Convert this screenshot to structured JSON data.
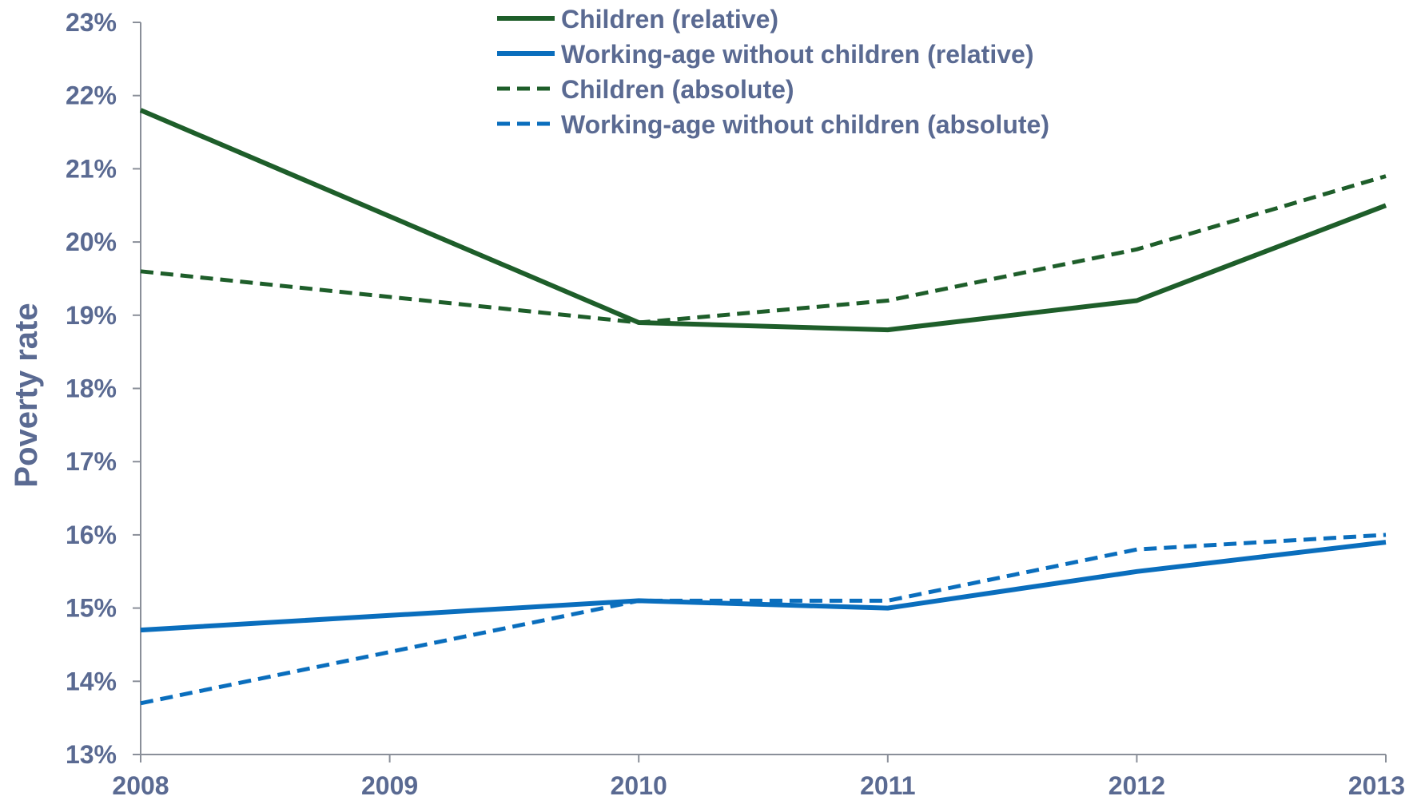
{
  "chart_data": {
    "type": "line",
    "title": "",
    "xlabel": "",
    "ylabel": "Poverty rate",
    "x": [
      "2008",
      "2009",
      "2010",
      "2011",
      "2012",
      "2013"
    ],
    "ylim": [
      0.13,
      0.23
    ],
    "yticks": [
      "13%",
      "14%",
      "15%",
      "16%",
      "17%",
      "18%",
      "19%",
      "20%",
      "21%",
      "22%",
      "23%"
    ],
    "grid": false,
    "legend_position": "top-center",
    "series": [
      {
        "name": "Children (relative)",
        "color": "#1e5e2a",
        "dashed": false,
        "values": [
          0.218,
          0.2035,
          0.189,
          0.188,
          0.192,
          0.205
        ]
      },
      {
        "name": "Working-age without children (relative)",
        "color": "#0a6ebd",
        "dashed": false,
        "values": [
          0.147,
          0.149,
          0.151,
          0.15,
          0.155,
          0.159
        ]
      },
      {
        "name": "Children (absolute)",
        "color": "#1e5e2a",
        "dashed": true,
        "values": [
          0.196,
          0.1925,
          0.189,
          0.192,
          0.199,
          0.209
        ]
      },
      {
        "name": "Working-age without children (absolute)",
        "color": "#0a6ebd",
        "dashed": true,
        "values": [
          0.137,
          0.144,
          0.151,
          0.151,
          0.158,
          0.16
        ]
      }
    ]
  }
}
